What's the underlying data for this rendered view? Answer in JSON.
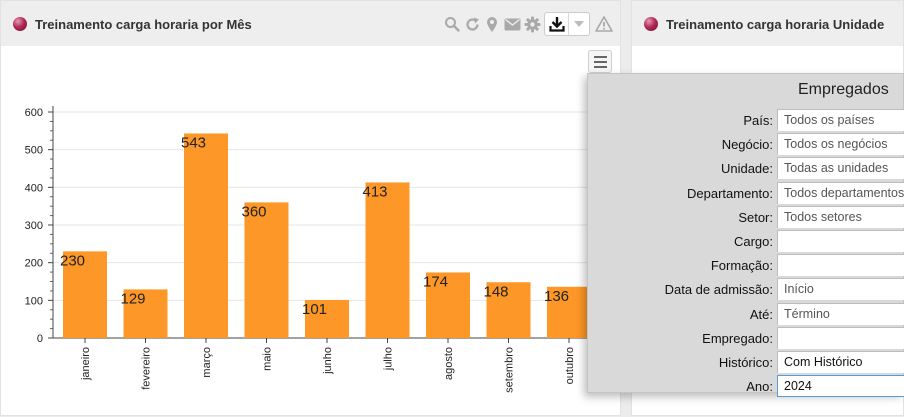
{
  "left_panel": {
    "title": "Treinamento carga horaria por Mês"
  },
  "right_panel": {
    "title": "Treinamento carga horaria Unidade"
  },
  "toolbar": {
    "icons": [
      "search-icon",
      "refresh-icon",
      "location-pin-icon",
      "mail-icon",
      "gear-icon",
      "download-icon",
      "chevron-down-icon",
      "warning-icon"
    ]
  },
  "colors": {
    "bar": "#fd9727",
    "accent": "#b22b5a"
  },
  "chart_data": {
    "type": "bar",
    "categories": [
      "janeiro",
      "fevereiro",
      "março",
      "maio",
      "junho",
      "julho",
      "agosto",
      "setembro",
      "outubro"
    ],
    "values": [
      230,
      129,
      543,
      360,
      101,
      413,
      174,
      148,
      136
    ],
    "data_labels": [
      "230",
      "129",
      "543",
      "360",
      "101",
      "413",
      "174",
      "148",
      "136"
    ],
    "y_ticks": [
      "0",
      "100",
      "200",
      "300",
      "400",
      "500",
      "600"
    ],
    "ylim": [
      0,
      600
    ],
    "grid": true,
    "title": "",
    "xlabel": "",
    "ylabel": ""
  },
  "filters": {
    "title": "Empregados",
    "rows": [
      {
        "label": "País:",
        "placeholder": "Todos os países",
        "value": ""
      },
      {
        "label": "Negócio:",
        "placeholder": "Todos os negócios",
        "value": ""
      },
      {
        "label": "Unidade:",
        "placeholder": "Todas as unidades",
        "value": ""
      },
      {
        "label": "Departamento:",
        "placeholder": "Todos departamentos",
        "value": ""
      },
      {
        "label": "Setor:",
        "placeholder": "Todos setores",
        "value": ""
      },
      {
        "label": "Cargo:",
        "placeholder": "",
        "value": ""
      },
      {
        "label": "Formação:",
        "placeholder": "",
        "value": ""
      },
      {
        "label": "Data de admissão:",
        "placeholder": "Início",
        "value": ""
      },
      {
        "label": "Até:",
        "placeholder": "Término",
        "value": ""
      },
      {
        "label": "Empregado:",
        "placeholder": "",
        "value": ""
      },
      {
        "label": "Histórico:",
        "placeholder": "",
        "value": "Com Histórico"
      },
      {
        "label": "Ano:",
        "placeholder": "",
        "value": "2024"
      }
    ]
  }
}
